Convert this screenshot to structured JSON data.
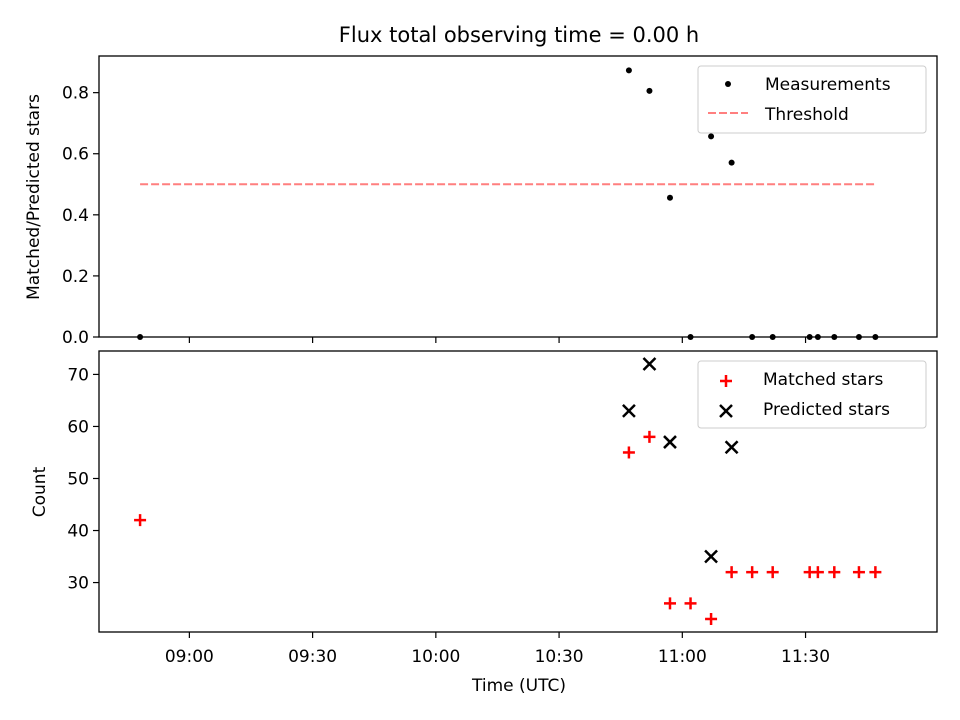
{
  "chart_data": {
    "title": "Flux total observing time = 0.00 h",
    "xlabel": "Time (UTC)",
    "xlim": [
      "08:38",
      "12:02"
    ],
    "xticks": [
      "09:00",
      "09:30",
      "10:00",
      "10:30",
      "11:00",
      "11:30"
    ],
    "panels": [
      {
        "type": "scatter",
        "ylabel": "Matched/Predicted stars",
        "ylim": [
          0,
          0.92
        ],
        "yticks": [
          "0.0",
          "0.2",
          "0.4",
          "0.6",
          "0.8"
        ],
        "legend_position": "top-right",
        "series": [
          {
            "name": "Measurements",
            "kind": "points",
            "marker": "dot",
            "color": "#000000",
            "points": [
              [
                "08:48",
                0.0
              ],
              [
                "10:47",
                0.873
              ],
              [
                "10:52",
                0.806
              ],
              [
                "10:57",
                0.456
              ],
              [
                "11:02",
                0.0
              ],
              [
                "11:07",
                0.657
              ],
              [
                "11:12",
                0.571
              ],
              [
                "11:17",
                0.0
              ],
              [
                "11:22",
                0.0
              ],
              [
                "11:31",
                0.0
              ],
              [
                "11:33",
                0.0
              ],
              [
                "11:37",
                0.0
              ],
              [
                "11:43",
                0.0
              ],
              [
                "11:47",
                0.0
              ]
            ]
          },
          {
            "name": "Threshold",
            "kind": "line",
            "style": "dashed",
            "color": "#ff7f7f",
            "points": [
              [
                "08:48",
                0.5
              ],
              [
                "11:47",
                0.5
              ]
            ]
          }
        ]
      },
      {
        "type": "scatter",
        "ylabel": "Count",
        "ylim": [
          20.5,
          74.5
        ],
        "yticks": [
          "30",
          "40",
          "50",
          "60",
          "70"
        ],
        "legend_position": "top-right",
        "series": [
          {
            "name": "Matched stars",
            "marker": "plus",
            "color": "#ff0000",
            "points": [
              [
                "08:48",
                42
              ],
              [
                "10:47",
                55
              ],
              [
                "10:52",
                58
              ],
              [
                "10:57",
                26
              ],
              [
                "11:02",
                26
              ],
              [
                "11:07",
                23
              ],
              [
                "11:12",
                32
              ],
              [
                "11:17",
                32
              ],
              [
                "11:22",
                32
              ],
              [
                "11:31",
                32
              ],
              [
                "11:33",
                32
              ],
              [
                "11:37",
                32
              ],
              [
                "11:43",
                32
              ],
              [
                "11:47",
                32
              ]
            ]
          },
          {
            "name": "Predicted stars",
            "marker": "x",
            "color": "#000000",
            "points": [
              [
                "10:47",
                63
              ],
              [
                "10:52",
                72
              ],
              [
                "10:57",
                57
              ],
              [
                "11:07",
                35
              ],
              [
                "11:12",
                56
              ]
            ]
          }
        ]
      }
    ]
  }
}
